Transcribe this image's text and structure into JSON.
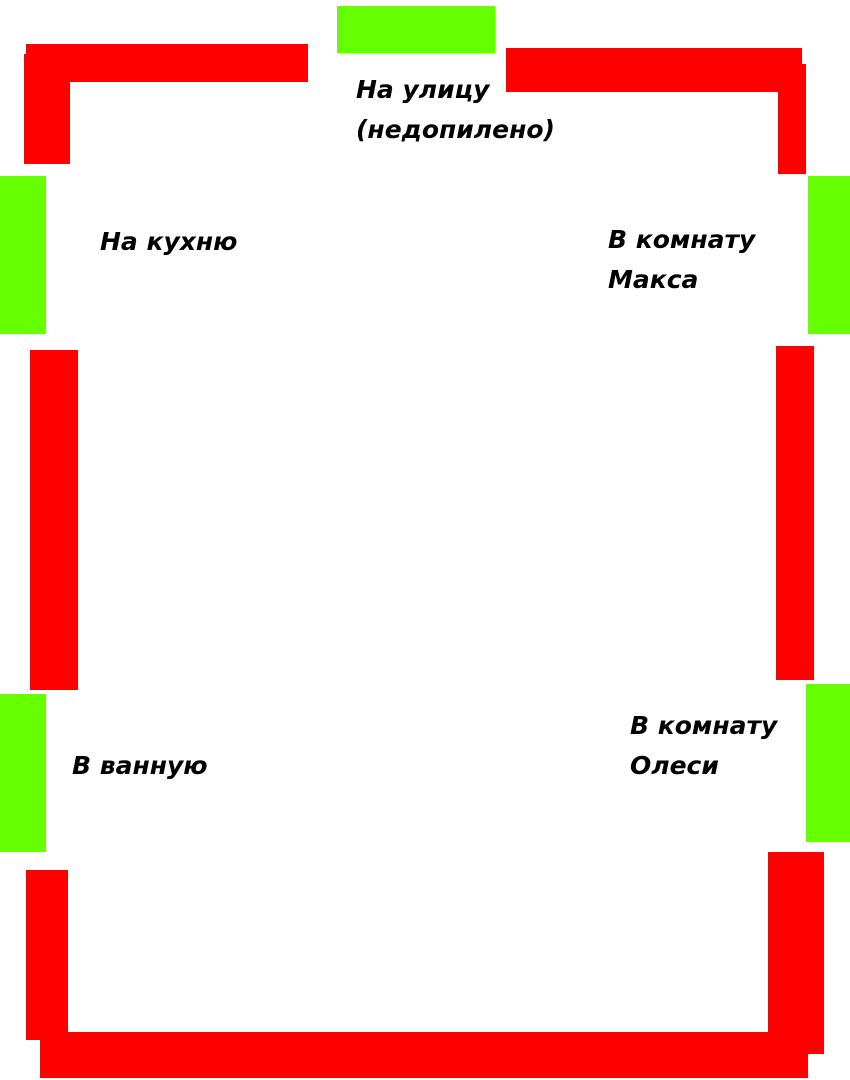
{
  "colors": {
    "wall": "#ff0000",
    "door": "#66ff00",
    "text": "#000000",
    "background": "#ffffff"
  },
  "doors": {
    "street": {
      "line1": "На улицу",
      "line2": "(недопилено)"
    },
    "kitchen": {
      "line1": "На кухню"
    },
    "max_room": {
      "line1": "В комнату",
      "line2": "Макса"
    },
    "bathroom": {
      "line1": "В ванную"
    },
    "olesya_room": {
      "line1": "В комнату",
      "line2": "Олеси"
    }
  }
}
